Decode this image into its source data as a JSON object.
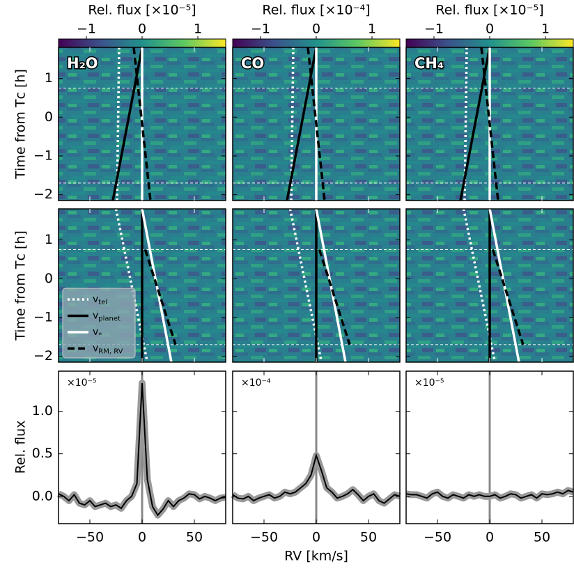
{
  "chart_data": {
    "type": "line",
    "xlabel": "RV [km/s]",
    "xlim": [
      -80,
      80
    ],
    "xticks": [
      {
        "value": -50,
        "label": "−50"
      },
      0,
      50
    ],
    "colorbar": {
      "lim": [
        -1.5,
        1.5
      ],
      "ticks": [
        {
          "value": -1,
          "label": "−1"
        },
        0,
        1
      ]
    },
    "molecules": [
      {
        "label": "H₂O",
        "colorbar_label": "Rel. flux [×10⁻⁵]",
        "multiplier_label": "×10⁻⁵",
        "error": 0.04,
        "values": [
          0.03,
          0.0,
          -0.05,
          0.02,
          -0.08,
          -0.1,
          -0.05,
          -0.12,
          -0.1,
          -0.08,
          -0.12,
          -0.1,
          -0.14,
          -0.05,
          0.0,
          0.15,
          1.33,
          0.2,
          -0.12,
          -0.22,
          -0.15,
          -0.05,
          -0.12,
          -0.05,
          -0.02,
          0.03,
          0.02,
          -0.03,
          0.0,
          -0.02,
          -0.05,
          -0.02,
          -0.01
        ]
      },
      {
        "label": "CO",
        "colorbar_label": "Rel. flux [×10⁻⁴]",
        "multiplier_label": "×10⁻⁴",
        "error": 0.04,
        "values": [
          0.02,
          -0.02,
          -0.03,
          0.0,
          -0.05,
          -0.02,
          0.0,
          0.02,
          -0.02,
          0.0,
          0.05,
          0.03,
          0.05,
          0.1,
          0.15,
          0.25,
          0.48,
          0.3,
          0.1,
          0.05,
          -0.02,
          0.0,
          0.03,
          0.08,
          0.02,
          -0.05,
          0.0,
          0.03,
          -0.05,
          -0.08,
          -0.03,
          0.02,
          0.0
        ]
      },
      {
        "label": "CH₄",
        "colorbar_label": "Rel. flux [×10⁻⁵]",
        "multiplier_label": "×10⁻⁵",
        "error": 0.04,
        "values": [
          0.03,
          0.02,
          0.02,
          0.0,
          -0.02,
          0.03,
          0.05,
          0.0,
          -0.02,
          0.02,
          0.0,
          -0.02,
          0.02,
          0.0,
          0.02,
          0.0,
          0.0,
          0.02,
          -0.02,
          0.0,
          0.03,
          0.02,
          -0.02,
          0.0,
          0.02,
          -0.02,
          0.03,
          0.02,
          0.03,
          0.05,
          0.03,
          0.07,
          0.05
        ]
      }
    ],
    "legend": [
      {
        "symbol": "v",
        "subscript": "tel",
        "color": "#ffffff",
        "style": "dotted"
      },
      {
        "symbol": "v",
        "subscript": "planet",
        "color": "#000000",
        "style": "solid"
      },
      {
        "symbol": "v",
        "subscript": "*",
        "color": "#ffffff",
        "style": "solid"
      },
      {
        "symbol": "v",
        "subscript": "RM, RV",
        "color": "#000000",
        "style": "dashed"
      }
    ],
    "map": {
      "ylabel": "Time from Tᴄ [h]",
      "ylim": [
        -2.15,
        1.8
      ],
      "yticks": [
        {
          "value": -2,
          "label": "−2"
        },
        {
          "value": -1,
          "label": "−1"
        },
        0,
        1
      ],
      "hlines": [
        0.75,
        -1.7
      ],
      "rows": [
        {
          "tracks": [
            {
              "x": [
                -22,
                -24
              ],
              "y": [
                1.8,
                -2.15
              ]
            },
            {
              "x": [
                -28,
                0
              ],
              "y": [
                -2.15,
                1.8
              ]
            },
            {
              "x": [
                0,
                0
              ],
              "y": [
                1.8,
                -2.15
              ]
            },
            {
              "x": [
                -8,
                8
              ],
              "y": [
                1.8,
                -2.15
              ]
            }
          ]
        },
        {
          "tracks": [
            {
              "x": [
                -25,
                5
              ],
              "y": [
                1.8,
                -2.15
              ]
            },
            {
              "x": [
                0,
                0
              ],
              "y": [
                1.8,
                -2.15
              ]
            },
            {
              "x": [
                0,
                28
              ],
              "y": [
                1.8,
                -2.15
              ]
            },
            {
              "x": [
                3,
                32
              ],
              "y": [
                0.75,
                -1.7
              ]
            }
          ]
        }
      ]
    },
    "profile": {
      "ylabel": "Rel. flux",
      "ylim": [
        -0.32,
        1.47
      ],
      "yticks": [
        {
          "value": 0,
          "label": "0.0"
        },
        {
          "value": 0.5,
          "label": "0.5"
        },
        {
          "value": 1,
          "label": "1.0"
        }
      ],
      "reference_x": 0,
      "x": [
        -80,
        -75,
        -70,
        -65,
        -60,
        -55,
        -50,
        -45,
        -40,
        -35,
        -30,
        -25,
        -20,
        -15,
        -10,
        -5,
        0,
        5,
        10,
        15,
        20,
        25,
        30,
        35,
        40,
        45,
        50,
        55,
        60,
        65,
        70,
        75,
        80
      ]
    }
  }
}
